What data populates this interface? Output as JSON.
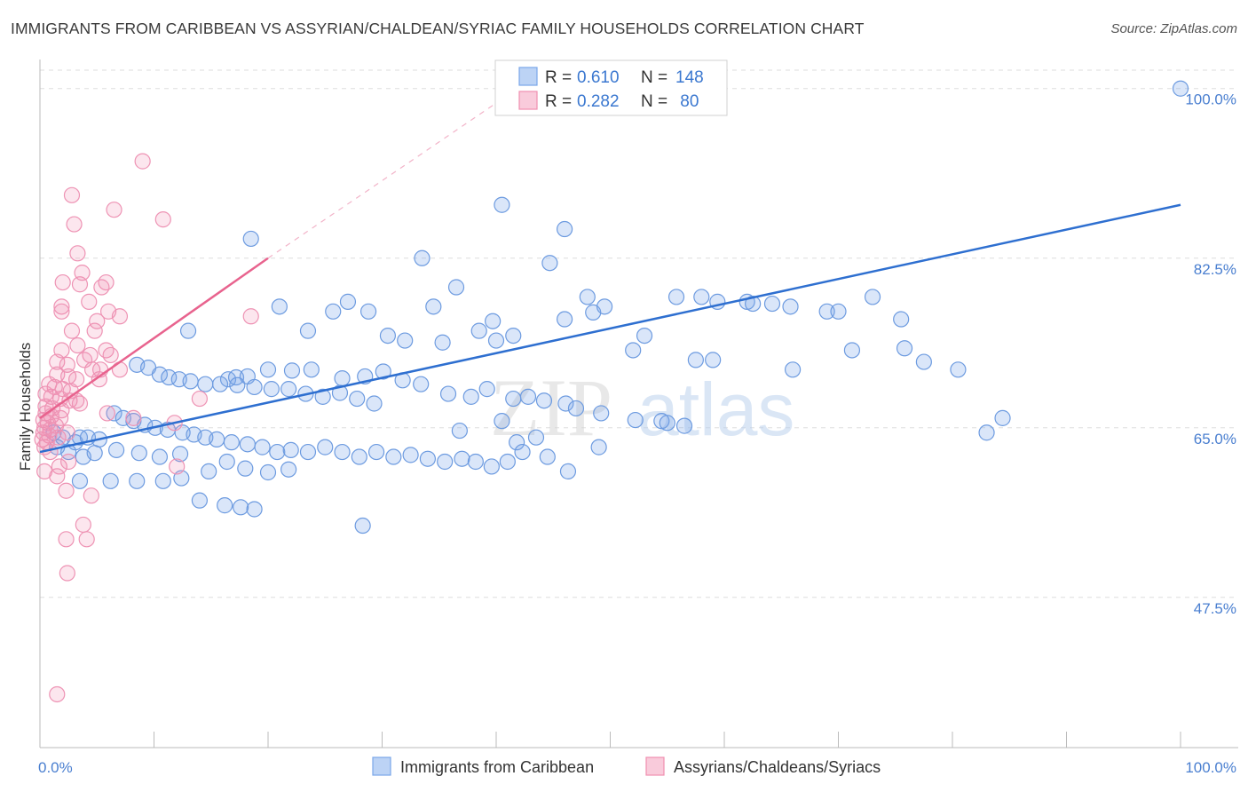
{
  "title": "IMMIGRANTS FROM CARIBBEAN VS ASSYRIAN/CHALDEAN/SYRIAC FAMILY HOUSEHOLDS CORRELATION CHART",
  "source": "Source: ZipAtlas.com",
  "watermark": {
    "zip": "ZIP",
    "atlas": "atlas"
  },
  "colors": {
    "blue": "#7aa7e8",
    "blue_line": "#2e6fd0",
    "pink": "#f08fb0",
    "pink_line": "#e8638e",
    "axis_text": "#4a7fd0",
    "grid": "#dddddd"
  },
  "chart_data": {
    "type": "scatter",
    "title": "IMMIGRANTS FROM CARIBBEAN VS ASSYRIAN/CHALDEAN/SYRIAC FAMILY HOUSEHOLDS CORRELATION CHART",
    "xlabel": "",
    "ylabel": "Family Households",
    "xlim": [
      0,
      100
    ],
    "ylim": [
      32,
      103
    ],
    "x_tick_labels": [
      "0.0%",
      "100.0%"
    ],
    "y_ticks": [
      47.5,
      65.0,
      82.5,
      100.0
    ],
    "y_tick_labels": [
      "47.5%",
      "65.0%",
      "82.5%",
      "100.0%"
    ],
    "legend": [
      {
        "name": "Immigrants from Caribbean",
        "R": "0.610",
        "N": "148",
        "color": "blue"
      },
      {
        "name": "Assyrians/Chaldeans/Syriacs",
        "R": "0.282",
        "N": " 80",
        "color": "pink"
      }
    ],
    "series": [
      {
        "name": "Immigrants from Caribbean",
        "color": "blue",
        "trend": {
          "x0": 0,
          "y0": 62.5,
          "x1": 100,
          "y1": 88.0
        },
        "points": [
          [
            100,
            100
          ],
          [
            40.5,
            88
          ],
          [
            46,
            85.5
          ],
          [
            18.5,
            84.5
          ],
          [
            33.5,
            82.5
          ],
          [
            44.7,
            82
          ],
          [
            36.5,
            79.5
          ],
          [
            21,
            77.5
          ],
          [
            27,
            78
          ],
          [
            25.7,
            77
          ],
          [
            28.8,
            77
          ],
          [
            34.5,
            77.5
          ],
          [
            39.7,
            76
          ],
          [
            46,
            76.2
          ],
          [
            48,
            78.5
          ],
          [
            48.5,
            76.9
          ],
          [
            49.5,
            77.5
          ],
          [
            55.8,
            78.5
          ],
          [
            58,
            78.5
          ],
          [
            59.4,
            78
          ],
          [
            62,
            78
          ],
          [
            62.5,
            77.8
          ],
          [
            64.2,
            77.8
          ],
          [
            65.8,
            77.5
          ],
          [
            69,
            77
          ],
          [
            70,
            77
          ],
          [
            73,
            78.5
          ],
          [
            75.5,
            76.2
          ],
          [
            13,
            75
          ],
          [
            23.5,
            75
          ],
          [
            30.5,
            74.5
          ],
          [
            32,
            74
          ],
          [
            35.3,
            73.8
          ],
          [
            38.5,
            75
          ],
          [
            40,
            74
          ],
          [
            41.5,
            74.5
          ],
          [
            53,
            74.5
          ],
          [
            52,
            73
          ],
          [
            57.5,
            72
          ],
          [
            59,
            72
          ],
          [
            66,
            71
          ],
          [
            71.2,
            73
          ],
          [
            75.8,
            73.2
          ],
          [
            77.5,
            71.8
          ],
          [
            80.5,
            71
          ],
          [
            84.4,
            66
          ],
          [
            83,
            64.5
          ],
          [
            16.5,
            70
          ],
          [
            17.2,
            70.2
          ],
          [
            18.2,
            70.3
          ],
          [
            20,
            71
          ],
          [
            22.1,
            70.9
          ],
          [
            23.8,
            71
          ],
          [
            26.5,
            70.1
          ],
          [
            28.5,
            70.3
          ],
          [
            30.1,
            70.8
          ],
          [
            31.8,
            69.9
          ],
          [
            33.4,
            69.5
          ],
          [
            35.8,
            68.5
          ],
          [
            37.8,
            68.2
          ],
          [
            39.2,
            69
          ],
          [
            41.5,
            68
          ],
          [
            42.8,
            68.2
          ],
          [
            44.2,
            67.8
          ],
          [
            46.1,
            67.5
          ],
          [
            47,
            67
          ],
          [
            49.2,
            66.5
          ],
          [
            52.2,
            65.8
          ],
          [
            54.5,
            65.7
          ],
          [
            56.5,
            65.2
          ],
          [
            55,
            65.5
          ],
          [
            8.5,
            71.5
          ],
          [
            9.5,
            71.2
          ],
          [
            10.5,
            70.5
          ],
          [
            11.3,
            70.2
          ],
          [
            12.2,
            70
          ],
          [
            13.2,
            69.8
          ],
          [
            14.5,
            69.5
          ],
          [
            15.8,
            69.5
          ],
          [
            17.3,
            69.4
          ],
          [
            18.8,
            69.2
          ],
          [
            20.3,
            69
          ],
          [
            21.8,
            69
          ],
          [
            23.3,
            68.5
          ],
          [
            24.8,
            68.2
          ],
          [
            26.3,
            68.6
          ],
          [
            27.8,
            68
          ],
          [
            29.3,
            67.5
          ],
          [
            6.5,
            66.5
          ],
          [
            7.3,
            66
          ],
          [
            8.2,
            65.7
          ],
          [
            9.2,
            65.3
          ],
          [
            10.1,
            65
          ],
          [
            11.2,
            64.8
          ],
          [
            12.5,
            64.5
          ],
          [
            13.5,
            64.3
          ],
          [
            14.5,
            64
          ],
          [
            15.5,
            63.8
          ],
          [
            16.8,
            63.5
          ],
          [
            18.2,
            63.3
          ],
          [
            19.5,
            63
          ],
          [
            20.8,
            62.5
          ],
          [
            22,
            62.7
          ],
          [
            23.5,
            62.5
          ],
          [
            25,
            63
          ],
          [
            26.5,
            62.5
          ],
          [
            28,
            62
          ],
          [
            29.5,
            62.5
          ],
          [
            31,
            62
          ],
          [
            32.5,
            62.2
          ],
          [
            34,
            61.8
          ],
          [
            35.5,
            61.5
          ],
          [
            37,
            61.8
          ],
          [
            38.2,
            61.5
          ],
          [
            39.6,
            61
          ],
          [
            41,
            61.5
          ],
          [
            1.2,
            64.5
          ],
          [
            2,
            64
          ],
          [
            3.1,
            63.5
          ],
          [
            3.5,
            64
          ],
          [
            4.2,
            64
          ],
          [
            5.2,
            63.8
          ],
          [
            1.5,
            63
          ],
          [
            2.5,
            62.5
          ],
          [
            3.8,
            62
          ],
          [
            4.8,
            62.4
          ],
          [
            6.7,
            62.7
          ],
          [
            8.7,
            62.4
          ],
          [
            10.5,
            62
          ],
          [
            12.3,
            62.3
          ],
          [
            14.8,
            60.5
          ],
          [
            16.4,
            61.5
          ],
          [
            18,
            60.8
          ],
          [
            20,
            60.4
          ],
          [
            21.8,
            60.7
          ],
          [
            10.8,
            59.5
          ],
          [
            12.4,
            59.8
          ],
          [
            8.5,
            59.5
          ],
          [
            6.2,
            59.5
          ],
          [
            3.5,
            59.5
          ],
          [
            14,
            57.5
          ],
          [
            16.2,
            57
          ],
          [
            17.6,
            56.8
          ],
          [
            18.8,
            56.6
          ],
          [
            28.3,
            54.9
          ],
          [
            44.5,
            62
          ],
          [
            46.3,
            60.5
          ],
          [
            49,
            63
          ],
          [
            40.5,
            65.7
          ],
          [
            36.8,
            64.7
          ],
          [
            41.8,
            63.5
          ],
          [
            42.3,
            62.5
          ],
          [
            43.5,
            64
          ]
        ]
      },
      {
        "name": "Assyrians/Chaldeans/Syriacs",
        "color": "pink",
        "trend": {
          "x0": 0,
          "y0": 66.0,
          "x1": 20,
          "y1": 82.5
        },
        "dashed_extension": {
          "x0": 20,
          "y0": 82.5,
          "x1": 42.5,
          "y1": 100.5
        },
        "points": [
          [
            9,
            92.5
          ],
          [
            2.8,
            89
          ],
          [
            6.5,
            87.5
          ],
          [
            10.8,
            86.5
          ],
          [
            3,
            86
          ],
          [
            3.3,
            83
          ],
          [
            3.7,
            81
          ],
          [
            2,
            80
          ],
          [
            5.8,
            80
          ],
          [
            3.5,
            79.8
          ],
          [
            5.4,
            79.5
          ],
          [
            4.3,
            78
          ],
          [
            1.9,
            77.5
          ],
          [
            1.9,
            77
          ],
          [
            6,
            77
          ],
          [
            5,
            76
          ],
          [
            7,
            76.5
          ],
          [
            18.5,
            76.5
          ],
          [
            2.8,
            75
          ],
          [
            4.8,
            75
          ],
          [
            3.3,
            73.5
          ],
          [
            5.8,
            73
          ],
          [
            1.9,
            73
          ],
          [
            6.2,
            72.5
          ],
          [
            4.4,
            72.5
          ],
          [
            3.9,
            72
          ],
          [
            1.5,
            71.8
          ],
          [
            2.4,
            71.5
          ],
          [
            4.6,
            71
          ],
          [
            5.3,
            71
          ],
          [
            7,
            71
          ],
          [
            1.5,
            70.5
          ],
          [
            2.5,
            70.3
          ],
          [
            3.2,
            70
          ],
          [
            5.2,
            70
          ],
          [
            0.8,
            69.5
          ],
          [
            1.3,
            69.2
          ],
          [
            2,
            69
          ],
          [
            2.7,
            68.8
          ],
          [
            0.5,
            68.5
          ],
          [
            1,
            68.2
          ],
          [
            1.8,
            68
          ],
          [
            2.6,
            67.8
          ],
          [
            3.5,
            67.5
          ],
          [
            0.5,
            67.2
          ],
          [
            1.1,
            67
          ],
          [
            1.9,
            66.8
          ],
          [
            0.5,
            66.5
          ],
          [
            1,
            66.2
          ],
          [
            1.8,
            66
          ],
          [
            0.3,
            65.8
          ],
          [
            0.7,
            65.5
          ],
          [
            1.4,
            65.2
          ],
          [
            0.4,
            65
          ],
          [
            0.9,
            64.8
          ],
          [
            0.3,
            64.5
          ],
          [
            0.8,
            64.2
          ],
          [
            1.6,
            64
          ],
          [
            0.2,
            63.8
          ],
          [
            0.6,
            63.5
          ],
          [
            0.4,
            63
          ],
          [
            0.9,
            62.5
          ],
          [
            1.7,
            61
          ],
          [
            2.5,
            61.5
          ],
          [
            0.4,
            60.5
          ],
          [
            1.5,
            60
          ],
          [
            2.3,
            58.5
          ],
          [
            4.5,
            58
          ],
          [
            2.3,
            53.5
          ],
          [
            4.1,
            53.5
          ],
          [
            3.8,
            55
          ],
          [
            2.4,
            50
          ],
          [
            1.5,
            37.5
          ],
          [
            11.8,
            65.5
          ],
          [
            12,
            61
          ],
          [
            14,
            68
          ],
          [
            3.2,
            67.8
          ],
          [
            5.9,
            66.5
          ],
          [
            8.2,
            66
          ],
          [
            2.4,
            64.5
          ]
        ]
      }
    ]
  }
}
